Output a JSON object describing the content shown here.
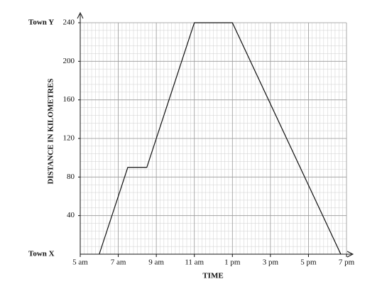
{
  "chart_data": {
    "type": "line",
    "x_label": "TIME",
    "y_label": "DISTANCE IN KILOMETRES",
    "x": [
      6,
      7.5,
      8.5,
      11,
      13,
      18.7
    ],
    "series": [
      {
        "color": "#111111",
        "values": [
          0,
          90,
          90,
          240,
          240,
          0
        ]
      }
    ],
    "xlim": [
      5,
      19
    ],
    "ylim": [
      0,
      240
    ],
    "xticks": [
      {
        "value": 5,
        "label": "5 am"
      },
      {
        "value": 7,
        "label": "7 am"
      },
      {
        "value": 9,
        "label": "9 am"
      },
      {
        "value": 11,
        "label": "11 am"
      },
      {
        "value": 13,
        "label": "1 pm"
      },
      {
        "value": 15,
        "label": "3 pm"
      },
      {
        "value": 17,
        "label": "5 pm"
      },
      {
        "value": 19,
        "label": "7 pm"
      }
    ],
    "yticks": [
      40,
      80,
      120,
      160,
      200,
      240
    ],
    "y_annotations": [
      {
        "value": 0,
        "label": "Town X"
      },
      {
        "value": 240,
        "label": "Town Y"
      }
    ],
    "grid": true
  }
}
